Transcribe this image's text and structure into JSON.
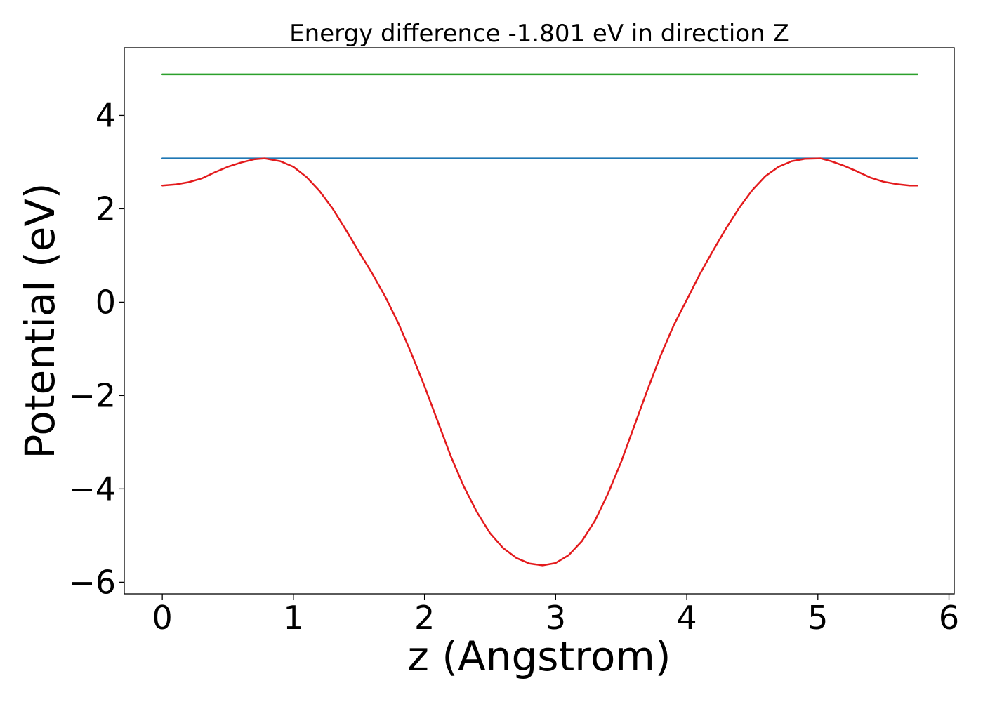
{
  "chart_data": {
    "type": "line",
    "title": "Energy difference -1.801 eV in direction Z",
    "xlabel": "z (Angstrom)",
    "ylabel": "Potential (eV)",
    "xlim": [
      -0.29,
      6.04
    ],
    "ylim": [
      -6.25,
      5.45
    ],
    "xticks": [
      0,
      1,
      2,
      3,
      4,
      5,
      6
    ],
    "yticks": [
      -6,
      -4,
      -2,
      0,
      2,
      4
    ],
    "xtick_labels": [
      "0",
      "1",
      "2",
      "3",
      "4",
      "5",
      "6"
    ],
    "ytick_labels": [
      "−6",
      "−4",
      "−2",
      "0",
      "2",
      "4"
    ],
    "grid": false,
    "series": [
      {
        "name": "green level",
        "color": "#2ca02c",
        "x": [
          0,
          5.76
        ],
        "y": [
          4.88,
          4.88
        ]
      },
      {
        "name": "blue level",
        "color": "#1f77b4",
        "x": [
          0,
          5.76
        ],
        "y": [
          3.08,
          3.08
        ]
      },
      {
        "name": "potential",
        "color": "#e31a1c",
        "x": [
          0.0,
          0.1,
          0.2,
          0.3,
          0.4,
          0.5,
          0.6,
          0.7,
          0.78,
          0.9,
          1.0,
          1.1,
          1.2,
          1.3,
          1.4,
          1.5,
          1.6,
          1.7,
          1.8,
          1.9,
          2.0,
          2.1,
          2.2,
          2.3,
          2.4,
          2.5,
          2.6,
          2.7,
          2.8,
          2.9,
          3.0,
          3.1,
          3.2,
          3.3,
          3.4,
          3.5,
          3.6,
          3.7,
          3.8,
          3.9,
          4.0,
          4.1,
          4.2,
          4.3,
          4.4,
          4.5,
          4.6,
          4.7,
          4.8,
          4.9,
          5.02,
          5.1,
          5.2,
          5.3,
          5.4,
          5.5,
          5.6,
          5.7,
          5.76
        ],
        "y": [
          2.5,
          2.52,
          2.57,
          2.65,
          2.78,
          2.9,
          2.99,
          3.06,
          3.08,
          3.02,
          2.9,
          2.68,
          2.38,
          2.0,
          1.55,
          1.08,
          0.62,
          0.12,
          -0.45,
          -1.1,
          -1.8,
          -2.55,
          -3.3,
          -3.95,
          -4.5,
          -4.95,
          -5.27,
          -5.48,
          -5.6,
          -5.64,
          -5.59,
          -5.42,
          -5.12,
          -4.68,
          -4.1,
          -3.42,
          -2.65,
          -1.88,
          -1.15,
          -0.5,
          0.05,
          0.6,
          1.1,
          1.58,
          2.02,
          2.4,
          2.7,
          2.9,
          3.02,
          3.07,
          3.08,
          3.02,
          2.92,
          2.8,
          2.67,
          2.58,
          2.53,
          2.5,
          2.5
        ]
      }
    ]
  }
}
